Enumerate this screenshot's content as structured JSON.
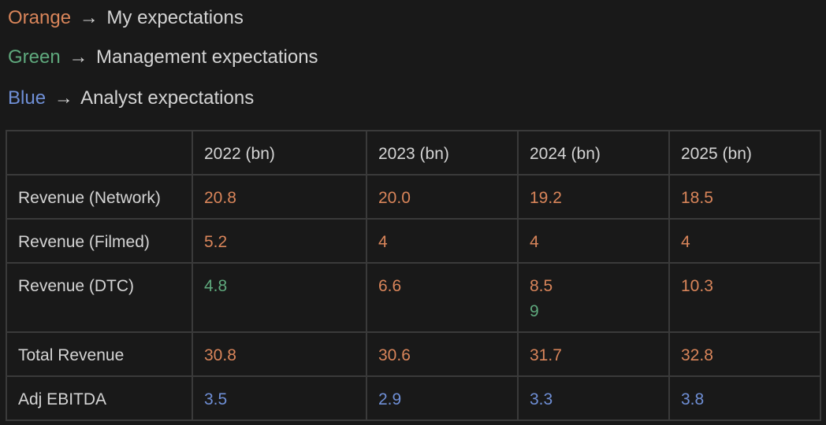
{
  "legend": [
    {
      "color_word": "Orange",
      "arrow": "→",
      "text": "My expectations",
      "color": "#d9855a"
    },
    {
      "color_word": "Green",
      "arrow": "→",
      "text": "Management expectations",
      "color": "#5fa97d"
    },
    {
      "color_word": "Blue",
      "arrow": "→",
      "text": "Analyst expectations",
      "color": "#6f8fd6"
    }
  ],
  "table": {
    "headers": [
      "",
      "2022 (bn)",
      "2023 (bn)",
      "2024 (bn)",
      "2025 (bn)"
    ],
    "rows": [
      {
        "label": "Revenue (Network)",
        "cells": [
          "20.8",
          "20.0",
          "19.2",
          "18.5"
        ]
      },
      {
        "label": "Revenue (Filmed)",
        "cells": [
          "5.2",
          "4",
          "4",
          "4"
        ]
      },
      {
        "label": "Revenue (DTC)",
        "cells": [
          "4.8",
          "6.6",
          "8.5",
          "10.3"
        ],
        "extra_2024": "9"
      },
      {
        "label": "Total Revenue",
        "cells": [
          "30.8",
          "30.6",
          "31.7",
          "32.8"
        ]
      },
      {
        "label": "Adj EBITDA",
        "cells": [
          "3.5",
          "2.9",
          "3.3",
          "3.8"
        ]
      }
    ]
  }
}
